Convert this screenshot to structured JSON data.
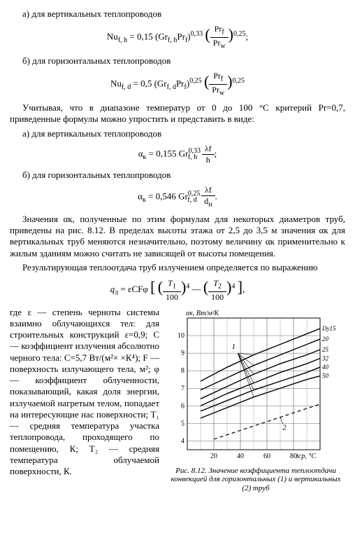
{
  "items": {
    "a1_label": "а) для вертикальных теплопроводов",
    "b1_label": "б) для горизонтальных теплопроводов",
    "a2_label": "а) для вертикальных теплопроводов",
    "b2_label": "б) для горизонтальных теплопроводов"
  },
  "equations": {
    "eq1": {
      "lhs": "Nu",
      "lhs_sub": "f, h",
      "coef": "0,15",
      "base": "(Gr",
      "base_sub": "f, h",
      "pr": "Pr",
      "pr_sub": "f",
      "pow1": "0,33",
      "ratio_num": "Pr",
      "ratio_num_sub": "f",
      "ratio_den": "Pr",
      "ratio_den_sub": "w",
      "pow2": "0,25"
    },
    "eq2": {
      "lhs": "Nu",
      "lhs_sub": "f, d",
      "coef": "0,5",
      "base": "(Gr",
      "base_sub": "f, d",
      "pr": "Pr",
      "pr_sub": "f",
      "pow1": "0,25",
      "ratio_num": "Pr",
      "ratio_num_sub": "f",
      "ratio_den": "Pr",
      "ratio_den_sub": "w",
      "pow2": "0,25"
    },
    "eq3": {
      "lhs": "α",
      "lhs_sub": "к",
      "coef": "0,155",
      "gr": "Gr",
      "gr_sup": "0,33",
      "gr_sub": "f, h",
      "num": "λf",
      "den": "h"
    },
    "eq4": {
      "lhs": "α",
      "lhs_sub": "к",
      "coef": "0,546",
      "gr": "Gr",
      "gr_sup": "0,25",
      "gr_sub": "f, d",
      "num": "λf",
      "den": "d",
      "den_sub": "н"
    },
    "eq5": {
      "lhs": "q",
      "lhs_sub": "л",
      "pre": "= εCFφ",
      "t1": "T",
      "t1_sub": "1",
      "t2": "T",
      "t2_sub": "2",
      "hundred": "100",
      "pow": "4"
    }
  },
  "paragraphs": {
    "p1": "Учитывая, что в диапазоне температур от 0 до 100 °С критерий Pr=0,7, приведенные формулы можно упростить и представить в виде:",
    "p2": "Значения αк, полученные по этим формулам для некоторых диаметров труб, приведены на рис. 8.12. В пределах высоты этажа от 2,5 до 3,5 м значения αк для вертикальных труб меняются незначительно, поэтому величину αк применительно к жилым зданиям можно считать не зависящей от высоты помещения.",
    "p3": "Результирующая теплоотдача труб излучением определяется по выражению",
    "pdef": "где ε — степень черноты системы взаимно облучающихся тел: для строительных конструкций ε=0,9; C — коэффициент излучения абсолютно черного тела: C=5,7 Вт/(м²× ×К⁴); F — поверхность излучающего тела, м²; φ — коэффициент облученности, показывающий, какая доля энергии, излучаемой нагретым телом, попадает на интересующие нас поверхности; T₁ — средняя температура участка теплопровода, проходящего по помещению, К; T₂ — средняя температура облучаемой поверхности, К."
  },
  "figure": {
    "ylabel": "αк, Вт/м²К",
    "xlabel": "tср, °C",
    "y_ticks": [
      "4",
      "5",
      "6",
      "7",
      "8",
      "9",
      "10"
    ],
    "x_ticks": [
      "20",
      "40",
      "60",
      "80"
    ],
    "series_labels": [
      "Dy15",
      "20",
      "25",
      "32",
      "40",
      "50"
    ],
    "callouts": [
      "1",
      "2"
    ],
    "caption_title": "Рис. 8.12.",
    "caption_text": "Значение коэффициента теплоотдачи конвекцией для горизонтальных (1) и вертикальных (2) труб",
    "style": {
      "bg": "#ffffff",
      "axis_color": "#000000",
      "grid_color": "#666666",
      "series_color": "#000000",
      "dash_color": "#000000",
      "line_width": 1.4,
      "dash_width": 1.2,
      "xlim": [
        0,
        100
      ],
      "ylim": [
        3.5,
        11
      ],
      "font_size_axis": 10,
      "font_size_label": 10
    },
    "series": [
      {
        "label": "Dy15",
        "pts": [
          [
            10,
            7.4
          ],
          [
            30,
            8.2
          ],
          [
            50,
            8.9
          ],
          [
            70,
            9.5
          ],
          [
            90,
            10.1
          ],
          [
            100,
            10.4
          ]
        ]
      },
      {
        "label": "20",
        "pts": [
          [
            10,
            6.9
          ],
          [
            30,
            7.6
          ],
          [
            50,
            8.3
          ],
          [
            70,
            8.9
          ],
          [
            90,
            9.5
          ],
          [
            100,
            9.8
          ]
        ]
      },
      {
        "label": "25",
        "pts": [
          [
            10,
            6.4
          ],
          [
            30,
            7.1
          ],
          [
            50,
            7.8
          ],
          [
            70,
            8.4
          ],
          [
            90,
            8.9
          ],
          [
            100,
            9.2
          ]
        ]
      },
      {
        "label": "32",
        "pts": [
          [
            10,
            6.0
          ],
          [
            30,
            6.7
          ],
          [
            50,
            7.3
          ],
          [
            70,
            7.9
          ],
          [
            90,
            8.4
          ],
          [
            100,
            8.7
          ]
        ]
      },
      {
        "label": "40",
        "pts": [
          [
            10,
            5.7
          ],
          [
            30,
            6.3
          ],
          [
            50,
            6.9
          ],
          [
            70,
            7.4
          ],
          [
            90,
            7.9
          ],
          [
            100,
            8.2
          ]
        ]
      },
      {
        "label": "50",
        "pts": [
          [
            10,
            5.3
          ],
          [
            30,
            5.9
          ],
          [
            50,
            6.5
          ],
          [
            70,
            7.0
          ],
          [
            90,
            7.5
          ],
          [
            100,
            7.7
          ]
        ]
      }
    ],
    "dashed": {
      "pts": [
        [
          20,
          4.1
        ],
        [
          40,
          4.6
        ],
        [
          60,
          5.1
        ],
        [
          80,
          5.6
        ],
        [
          100,
          6.1
        ]
      ]
    }
  }
}
